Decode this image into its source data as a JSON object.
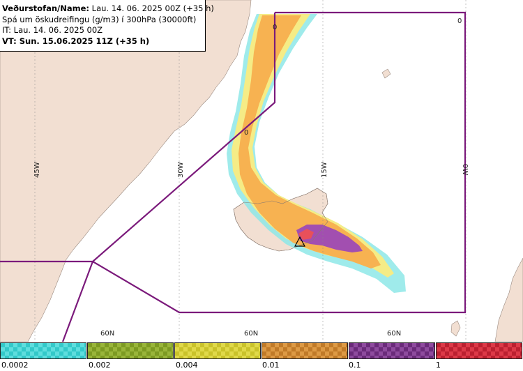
{
  "info": {
    "line1_bold": "Veðurstofan/Name:",
    "line1_rest": " Lau. 14. 06. 2025 00Z (+35 h)",
    "line2": "Spá um öskudreifingu (g/m3) í 300hPa (30000ft)",
    "line3": "IT: Lau. 14. 06. 2025 00Z",
    "line4": "VT: Sun. 15.06.2025 11Z (+35 h)"
  },
  "map": {
    "longitude_labels": [
      "45W",
      "30W",
      "15W",
      "0W"
    ],
    "latitude_labels": [
      "60N",
      "60N",
      "60N"
    ],
    "contour_zero_label": "0",
    "colors": {
      "land": "#f2dfd2",
      "sea": "#ffffff",
      "boundary": "#7b1a7b",
      "ash_orange": "#f7b251",
      "ash_yellow": "#f5ec86",
      "ash_cyan": "#8ee8e8",
      "ash_purple": "#a24fb0",
      "ash_red": "#e8505a"
    }
  },
  "legend": {
    "swatches": [
      {
        "color_a": "#33c9c9",
        "color_b": "#5fdede"
      },
      {
        "color_a": "#7c9a22",
        "color_b": "#99b53a"
      },
      {
        "color_a": "#c9c22a",
        "color_b": "#e0d94a"
      },
      {
        "color_a": "#c07a28",
        "color_b": "#dd9a45"
      },
      {
        "color_a": "#6a2a7a",
        "color_b": "#8e4b9e"
      },
      {
        "color_a": "#bb2030",
        "color_b": "#dd3a48"
      }
    ],
    "labels": [
      "0.0002",
      "0.002",
      "0.004",
      "0.01",
      "0.1",
      "1"
    ]
  }
}
